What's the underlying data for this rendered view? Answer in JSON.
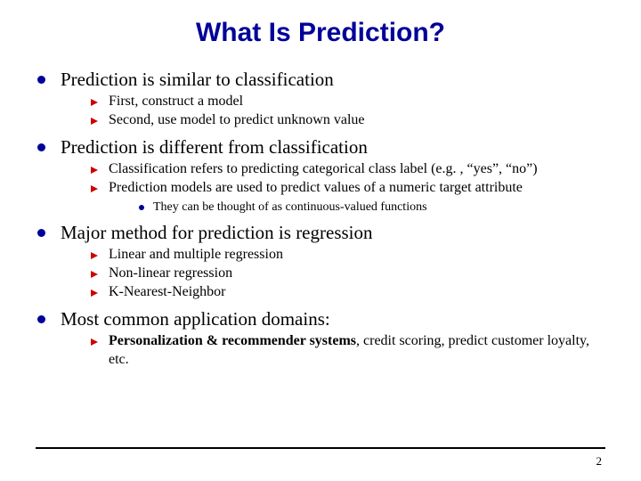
{
  "title": "What Is Prediction?",
  "bullets": [
    {
      "text": "Prediction is similar to classification",
      "sub": [
        {
          "text": "First, construct a model"
        },
        {
          "text": "Second, use model to predict unknown value"
        }
      ]
    },
    {
      "text": "Prediction is different from classification",
      "sub": [
        {
          "text": "Classification refers to predicting categorical class label (e.g. , “yes”, “no”)"
        },
        {
          "text": "Prediction models are used to predict values of a numeric target attribute",
          "sub": [
            {
              "text": "They can be thought of as continuous-valued functions"
            }
          ]
        }
      ]
    },
    {
      "text": "Major method for prediction is regression",
      "sub": [
        {
          "text": "Linear and multiple regression"
        },
        {
          "text": "Non-linear regression"
        },
        {
          "text": "K-Nearest-Neighbor"
        }
      ]
    },
    {
      "text": "Most common application domains:",
      "sub": [
        {
          "prefix_bold": "Personalization & recommender systems",
          "rest": ", credit scoring, predict customer loyalty, etc."
        }
      ]
    }
  ],
  "page_number": "2",
  "colors": {
    "title": "#000099",
    "bullet1": "#000099",
    "bullet2": "#cc0000",
    "text": "#000000",
    "line": "#000000"
  }
}
